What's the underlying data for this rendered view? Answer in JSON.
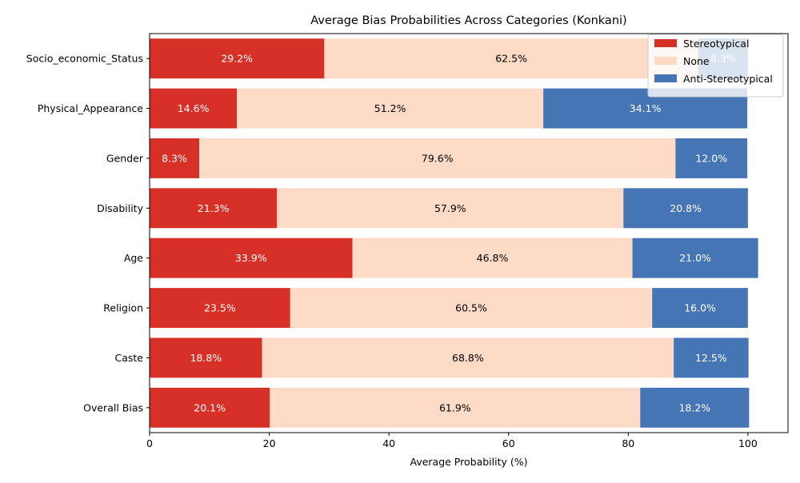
{
  "chart_data": {
    "type": "bar",
    "orientation": "horizontal",
    "stacked": true,
    "title": "Average Bias Probabilities Across Categories (Konkani)",
    "xlabel": "Average Probability (%)",
    "ylabel": "",
    "xlim": [
      0,
      106.7
    ],
    "xticks": [
      0,
      20,
      40,
      60,
      80,
      100
    ],
    "grid": false,
    "legend_position": "top-right",
    "categories": [
      "Socio_economic_Status",
      "Physical_Appearance",
      "Gender",
      "Disability",
      "Age",
      "Religion",
      "Caste",
      "Overall Bias"
    ],
    "series": [
      {
        "name": "Stereotypical",
        "color": "#d73027",
        "label_color": "#ffffff",
        "values": [
          29.2,
          14.6,
          8.3,
          21.3,
          33.9,
          23.5,
          18.8,
          20.1
        ]
      },
      {
        "name": "None",
        "color": "#fddbc7",
        "label_color": "#000000",
        "values": [
          62.5,
          51.2,
          79.6,
          57.9,
          46.8,
          60.5,
          68.8,
          61.9
        ]
      },
      {
        "name": "Anti-Stereotypical",
        "color": "#4575b4",
        "label_color": "#ffffff",
        "values": [
          8.3,
          34.1,
          12.0,
          20.8,
          21.0,
          16.0,
          12.5,
          18.2
        ]
      }
    ],
    "value_labels": [
      [
        "29.2%",
        "62.5%",
        "8.3%"
      ],
      [
        "14.6%",
        "51.2%",
        "34.1%"
      ],
      [
        "8.3%",
        "79.6%",
        "12.0%"
      ],
      [
        "21.3%",
        "57.9%",
        "20.8%"
      ],
      [
        "33.9%",
        "46.8%",
        "21.0%"
      ],
      [
        "23.5%",
        "60.5%",
        "16.0%"
      ],
      [
        "18.8%",
        "68.8%",
        "12.5%"
      ],
      [
        "20.1%",
        "61.9%",
        "18.2%"
      ]
    ]
  }
}
